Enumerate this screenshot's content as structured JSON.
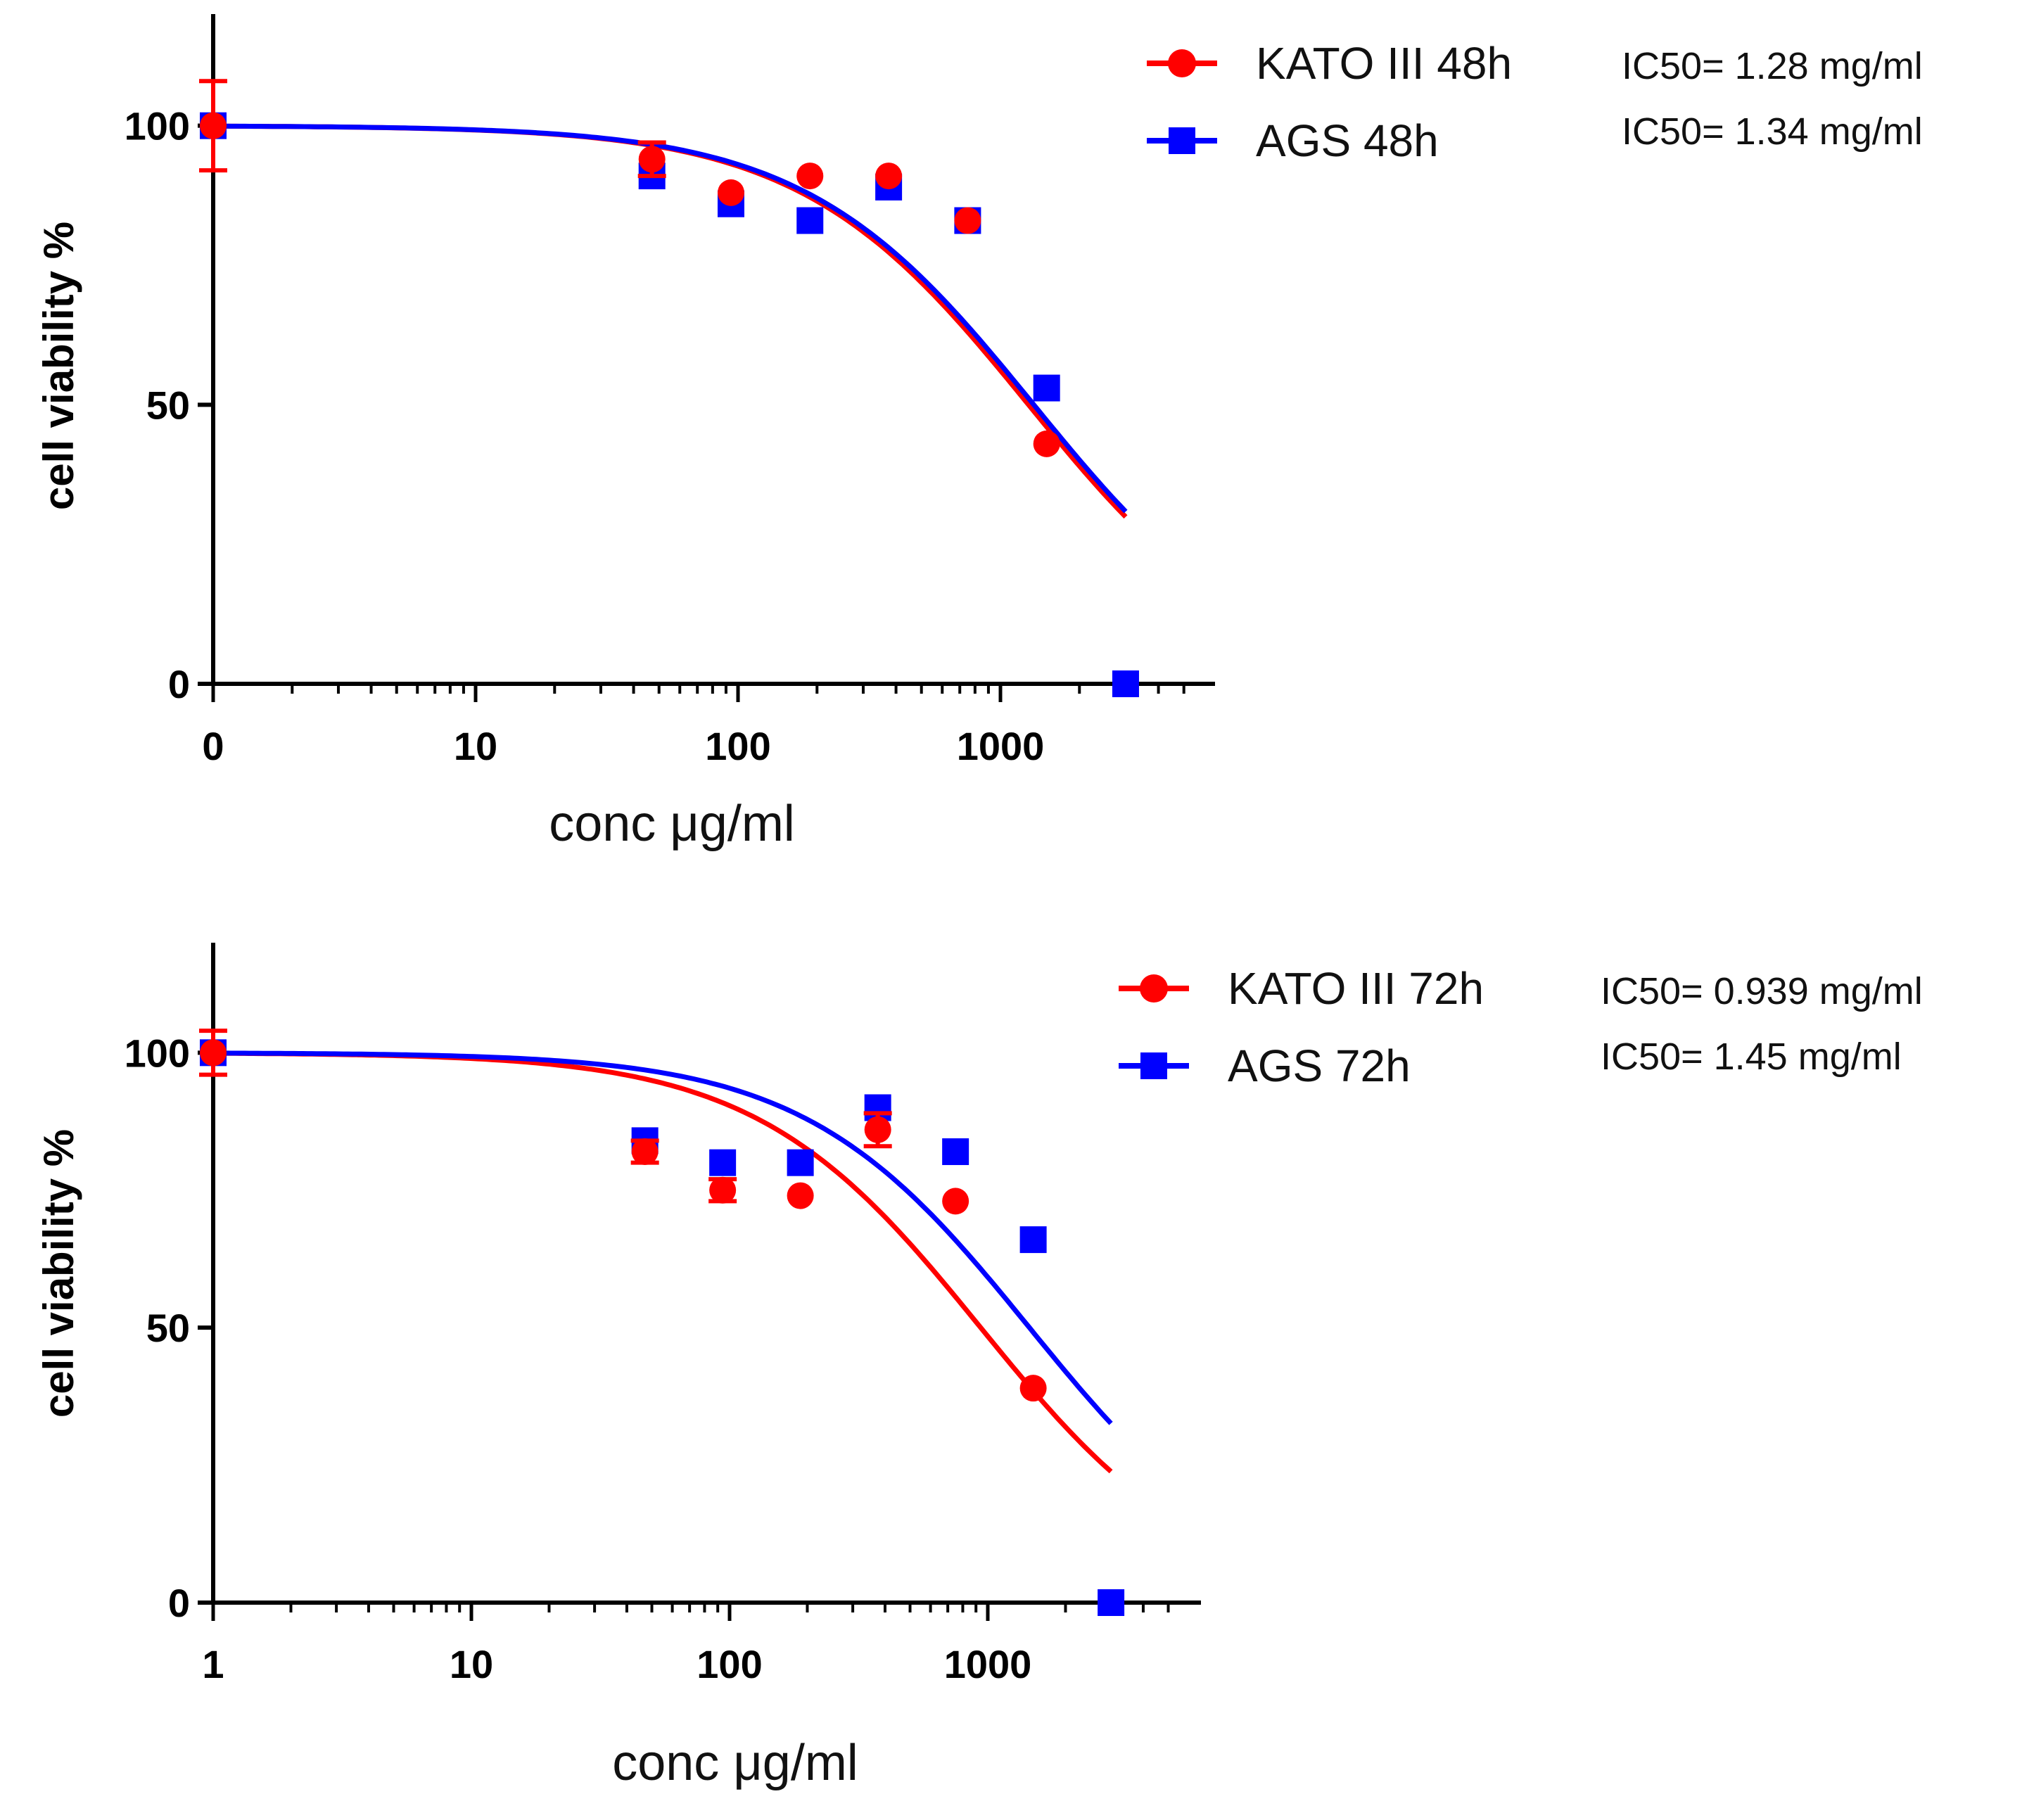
{
  "colors": {
    "kato": "#ff0000",
    "ags": "#0000ff",
    "axis": "#000000"
  },
  "chart_data": [
    {
      "type": "scatter",
      "x_scale": "log",
      "xlabel": "conc μg/ml",
      "ylabel": "cell viability %",
      "x_tick_labels": [
        "0",
        "10",
        "100",
        "1000"
      ],
      "x_tick_values": [
        1,
        10,
        100,
        1000
      ],
      "y_ticks": [
        0,
        50,
        100
      ],
      "ylim": [
        0,
        120
      ],
      "xlim": [
        1,
        5500
      ],
      "legend_position": "top-right",
      "series": [
        {
          "name": "KATO III 48h",
          "ic50_label": "IC50= 1.28 mg/ml",
          "color": "#ff0000",
          "marker": "circle",
          "ic50": 1280,
          "curve_x_range": [
            1,
            3000
          ],
          "points": [
            {
              "x": 1,
              "y": 100,
              "err": 8
            },
            {
              "x": 47,
              "y": 94,
              "err": 3
            },
            {
              "x": 94,
              "y": 88,
              "err": 0
            },
            {
              "x": 188,
              "y": 91,
              "err": 0
            },
            {
              "x": 375,
              "y": 91,
              "err": 0
            },
            {
              "x": 750,
              "y": 83,
              "err": 0
            },
            {
              "x": 1500,
              "y": 43,
              "err": 0
            },
            {
              "x": 3000,
              "y": 0,
              "err": 0
            }
          ]
        },
        {
          "name": "AGS 48h",
          "ic50_label": "IC50= 1.34 mg/ml",
          "color": "#0000ff",
          "marker": "square",
          "ic50": 1340,
          "curve_x_range": [
            1,
            3000
          ],
          "points": [
            {
              "x": 1,
              "y": 100,
              "err": 0
            },
            {
              "x": 47,
              "y": 91,
              "err": 0
            },
            {
              "x": 94,
              "y": 86,
              "err": 0
            },
            {
              "x": 188,
              "y": 83,
              "err": 0
            },
            {
              "x": 375,
              "y": 89,
              "err": 0
            },
            {
              "x": 750,
              "y": 83,
              "err": 0
            },
            {
              "x": 1500,
              "y": 53,
              "err": 0
            },
            {
              "x": 3000,
              "y": 0,
              "err": 0
            }
          ]
        }
      ]
    },
    {
      "type": "scatter",
      "x_scale": "log",
      "xlabel": "conc μg/ml",
      "ylabel": "cell viability %",
      "x_tick_labels": [
        "1",
        "10",
        "100",
        "1000"
      ],
      "x_tick_values": [
        1,
        10,
        100,
        1000
      ],
      "y_ticks": [
        0,
        50,
        100
      ],
      "ylim": [
        0,
        120
      ],
      "xlim": [
        1,
        5500
      ],
      "legend_position": "top-right",
      "series": [
        {
          "name": "KATO III 72h",
          "ic50_label": "IC50= 0.939 mg/ml",
          "color": "#ff0000",
          "marker": "circle",
          "ic50": 939,
          "curve_x_range": [
            1,
            3000
          ],
          "points": [
            {
              "x": 1,
              "y": 100,
              "err": 4
            },
            {
              "x": 47,
              "y": 82,
              "err": 2
            },
            {
              "x": 94,
              "y": 75,
              "err": 2
            },
            {
              "x": 188,
              "y": 74,
              "err": 0
            },
            {
              "x": 375,
              "y": 86,
              "err": 3
            },
            {
              "x": 750,
              "y": 73,
              "err": 0
            },
            {
              "x": 1500,
              "y": 39,
              "err": 0
            },
            {
              "x": 3000,
              "y": 0,
              "err": 0
            }
          ]
        },
        {
          "name": "AGS 72h",
          "ic50_label": "IC50= 1.45 mg/ml",
          "color": "#0000ff",
          "marker": "square",
          "ic50": 1450,
          "curve_x_range": [
            1,
            3000
          ],
          "points": [
            {
              "x": 1,
              "y": 100,
              "err": 0
            },
            {
              "x": 47,
              "y": 84,
              "err": 0
            },
            {
              "x": 94,
              "y": 80,
              "err": 0
            },
            {
              "x": 188,
              "y": 80,
              "err": 0
            },
            {
              "x": 375,
              "y": 90,
              "err": 0
            },
            {
              "x": 750,
              "y": 82,
              "err": 0
            },
            {
              "x": 1500,
              "y": 66,
              "err": 0
            },
            {
              "x": 3000,
              "y": 0,
              "err": 0
            }
          ]
        }
      ]
    }
  ]
}
